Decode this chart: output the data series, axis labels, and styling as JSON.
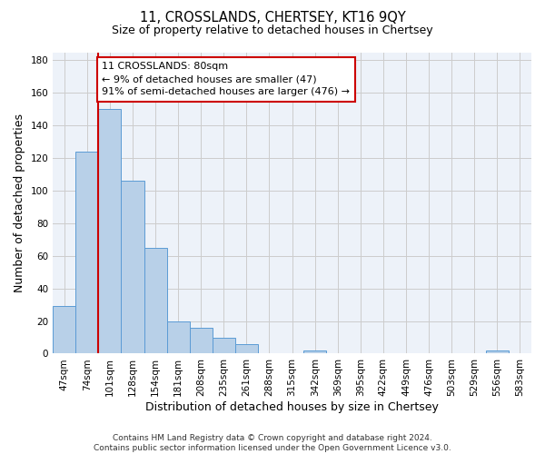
{
  "title": "11, CROSSLANDS, CHERTSEY, KT16 9QY",
  "subtitle": "Size of property relative to detached houses in Chertsey",
  "xlabel": "Distribution of detached houses by size in Chertsey",
  "ylabel": "Number of detached properties",
  "categories": [
    "47sqm",
    "74sqm",
    "101sqm",
    "128sqm",
    "154sqm",
    "181sqm",
    "208sqm",
    "235sqm",
    "261sqm",
    "288sqm",
    "315sqm",
    "342sqm",
    "369sqm",
    "395sqm",
    "422sqm",
    "449sqm",
    "476sqm",
    "503sqm",
    "529sqm",
    "556sqm",
    "583sqm"
  ],
  "values": [
    29,
    124,
    150,
    106,
    65,
    20,
    16,
    10,
    6,
    0,
    0,
    2,
    0,
    0,
    0,
    0,
    0,
    0,
    0,
    2,
    0
  ],
  "bar_color": "#b8d0e8",
  "bar_edge_color": "#5b9bd5",
  "vline_x_idx": 1.5,
  "vline_color": "#cc0000",
  "annotation_text_line1": "11 CROSSLANDS: 80sqm",
  "annotation_text_line2": "← 9% of detached houses are smaller (47)",
  "annotation_text_line3": "91% of semi-detached houses are larger (476) →",
  "annotation_box_color": "#cc0000",
  "ylim": [
    0,
    185
  ],
  "yticks": [
    0,
    20,
    40,
    60,
    80,
    100,
    120,
    140,
    160,
    180
  ],
  "grid_color": "#cccccc",
  "bg_color": "#edf2f9",
  "footer": "Contains HM Land Registry data © Crown copyright and database right 2024.\nContains public sector information licensed under the Open Government Licence v3.0.",
  "title_fontsize": 10.5,
  "subtitle_fontsize": 9,
  "axis_label_fontsize": 9,
  "tick_fontsize": 7.5,
  "footer_fontsize": 6.5
}
